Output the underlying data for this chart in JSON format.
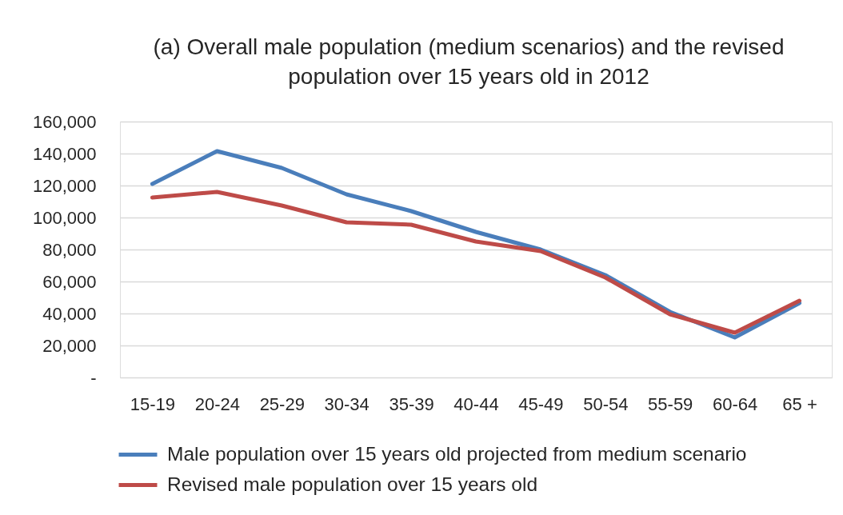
{
  "chart_data": {
    "type": "line",
    "title": "(a) Overall male population (medium scenarios) and the revised population over 15 years old in 2012",
    "categories": [
      "15-19",
      "20-24",
      "25-29",
      "30-34",
      "35-39",
      "40-44",
      "45-49",
      "50-54",
      "55-59",
      "60-64",
      "65 +"
    ],
    "series": [
      {
        "name": "Male population over 15 years old projected from medium scenario",
        "color": "#4a7ebb",
        "values": [
          121000,
          141500,
          131000,
          114500,
          104000,
          91000,
          80000,
          64000,
          41000,
          25000,
          46500
        ]
      },
      {
        "name": "Revised male population over 15 years old",
        "color": "#be4b48",
        "values": [
          112500,
          116000,
          107500,
          97000,
          95500,
          85000,
          79000,
          62500,
          39500,
          28000,
          48000
        ]
      }
    ],
    "ylim": [
      0,
      160000
    ],
    "yticks": [
      {
        "value": 0,
        "label": "-"
      },
      {
        "value": 20000,
        "label": "20,000"
      },
      {
        "value": 40000,
        "label": "40,000"
      },
      {
        "value": 60000,
        "label": "60,000"
      },
      {
        "value": 80000,
        "label": "80,000"
      },
      {
        "value": 100000,
        "label": "100,000"
      },
      {
        "value": 120000,
        "label": "120,000"
      },
      {
        "value": 140000,
        "label": "140,000"
      },
      {
        "value": 160000,
        "label": "160,000"
      }
    ],
    "grid": "y",
    "legend": "bottom",
    "marker": "none",
    "line_style": "solid"
  }
}
